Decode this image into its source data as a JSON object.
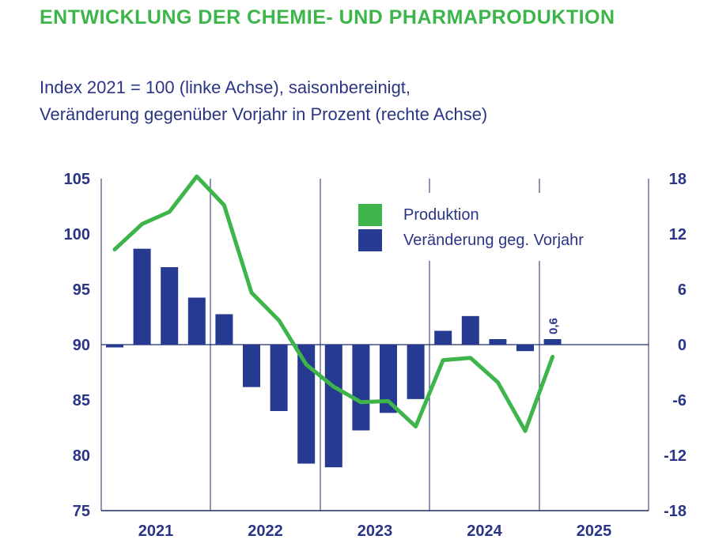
{
  "title": "ENTWICKLUNG DER CHEMIE- UND PHARMAPRODUKTION",
  "subtitle_line1": "Index 2021 = 100 (linke Achse), saisonbereinigt,",
  "subtitle_line2": "Veränderung gegenüber Vorjahr in Prozent (rechte Achse)",
  "colors": {
    "line": "#3db54a",
    "bars": "#263a92",
    "text": "#2a3585",
    "grid": "#1f2a6b"
  },
  "chart_data": {
    "type": "bar+line",
    "x_labels": [
      "2021",
      "2022",
      "2023",
      "2024",
      "2025"
    ],
    "left_axis": {
      "min": 75,
      "max": 105,
      "ticks": [
        "105",
        "100",
        "95",
        "90",
        "85",
        "80",
        "75"
      ]
    },
    "right_axis": {
      "min": -18,
      "max": 18,
      "ticks": [
        "18",
        "12",
        "6",
        "0",
        "-6",
        "-12",
        "-18"
      ]
    },
    "series": [
      {
        "name": "Veränderung geg. Vorjahr",
        "type": "bar",
        "axis": "right",
        "values": [
          -0.3,
          10.4,
          8.4,
          5.1,
          3.3,
          -4.6,
          -7.2,
          -12.9,
          -13.3,
          -9.3,
          -7.4,
          -5.9,
          1.5,
          3.1,
          0.6,
          -0.7,
          0.6
        ]
      },
      {
        "name": "Produktion",
        "type": "line",
        "axis": "left",
        "values": [
          98.6,
          100.9,
          102.0,
          105.2,
          102.6,
          94.7,
          92.2,
          88.2,
          86.2,
          84.8,
          84.9,
          82.6,
          88.6,
          88.8,
          86.6,
          82.2,
          88.9
        ]
      }
    ],
    "last_bar_label": "0,6",
    "legend": {
      "position": "top-right"
    }
  }
}
